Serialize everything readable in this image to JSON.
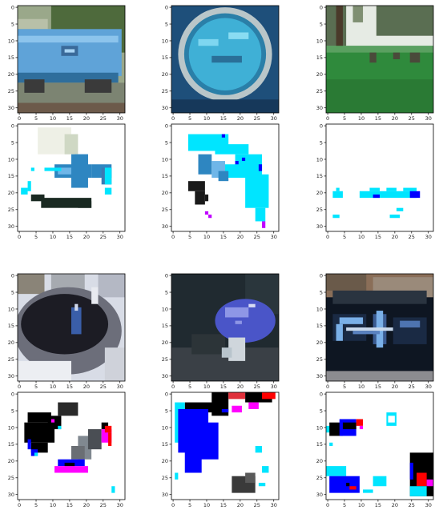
{
  "figure": {
    "axis_ticks": [
      "0",
      "5",
      "10",
      "15",
      "20",
      "25",
      "30"
    ],
    "colors": {
      "mask_background": "#ffffff",
      "axis": "#000000"
    },
    "panels": [
      {
        "row": 0,
        "col": 0,
        "kind": "image",
        "depicts": "blue-train-car",
        "palette": {
          "bg_top": "#9aa88a",
          "tree": "#4e6a3c",
          "body": "#5fa3d8",
          "body_dark": "#2f6e9c",
          "ground": "#7c8472",
          "rail": "#3a3a3a"
        }
      },
      {
        "row": 0,
        "col": 1,
        "kind": "image",
        "depicts": "blue-round-dial",
        "palette": {
          "bg": "#1e4f7a",
          "ring": "#b9c6c9",
          "face": "#3fb0d6",
          "face_dark": "#2a7fa8"
        }
      },
      {
        "row": 0,
        "col": 2,
        "kind": "image",
        "depicts": "geese-on-grass",
        "palette": {
          "sky": "#e6ebe4",
          "trees": "#5a6e52",
          "grass": "#2f8a3c",
          "birds": "#4a4a3a"
        }
      },
      {
        "row": 1,
        "col": 0,
        "kind": "mask",
        "depicts": "train-car-mask",
        "palette": {
          "a": "#2e86c1",
          "b": "#6fb6e8",
          "c": "#00e5ff",
          "d": "#1a2a22",
          "e": "#e8ece0",
          "f": "#ffffff"
        }
      },
      {
        "row": 1,
        "col": 1,
        "kind": "mask",
        "depicts": "dial-mask",
        "palette": {
          "a": "#00e5ff",
          "b": "#2e86c1",
          "c": "#1a1a1a",
          "d": "#0000ff",
          "e": "#c000ff",
          "f": "#6fb6e8"
        }
      },
      {
        "row": 1,
        "col": 2,
        "kind": "mask",
        "depicts": "geese-mask",
        "palette": {
          "a": "#00e5ff",
          "b": "#0000ff"
        }
      },
      {
        "row": 2,
        "col": 0,
        "kind": "image",
        "depicts": "dark-bowl",
        "palette": {
          "light": "#d8dce6",
          "dark": "#1c1c24",
          "mid": "#6c6e7a",
          "accent": "#3a5ea8"
        }
      },
      {
        "row": 2,
        "col": 1,
        "kind": "image",
        "depicts": "blue-mushroom",
        "palette": {
          "bg": "#202a30",
          "cap": "#4a55c8",
          "cap_light": "#8e96e6",
          "stem": "#cfd6dc"
        }
      },
      {
        "row": 2,
        "col": 2,
        "kind": "image",
        "depicts": "car-front",
        "palette": {
          "bg_top": "#8a6e58",
          "body": "#0e1622",
          "light": "#7ab0e8",
          "grille": "#c8d8ec"
        }
      },
      {
        "row": 3,
        "col": 0,
        "kind": "mask",
        "depicts": "bowl-mask",
        "palette": {
          "a": "#000000",
          "b": "#2a2a2a",
          "c": "#0000ff",
          "d": "#00e5ff",
          "e": "#ff00ff",
          "f": "#ff0000",
          "g": "#808890"
        }
      },
      {
        "row": 3,
        "col": 1,
        "kind": "mask",
        "depicts": "mushroom-mask",
        "palette": {
          "a": "#0000ff",
          "b": "#000000",
          "c": "#00e5ff",
          "d": "#ff00ff",
          "e": "#ff0000",
          "g": "#3a3a3a"
        }
      },
      {
        "row": 3,
        "col": 2,
        "kind": "mask",
        "depicts": "car-mask",
        "palette": {
          "a": "#000000",
          "b": "#0000ff",
          "c": "#00e5ff",
          "d": "#ff0000",
          "e": "#ff00ff"
        }
      }
    ]
  }
}
